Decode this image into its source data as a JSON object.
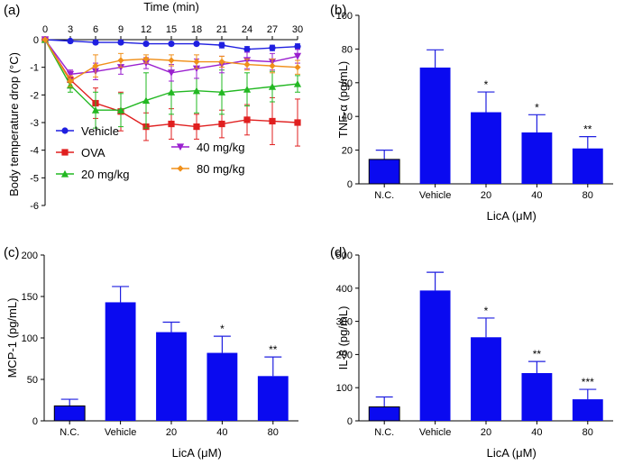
{
  "chart_data": [
    {
      "panel": "(a)",
      "type": "line",
      "xlabel": "Time (min)",
      "ylabel": "Body temperature drop (°C)",
      "x": [
        0,
        3,
        6,
        9,
        12,
        15,
        18,
        21,
        24,
        27,
        30
      ],
      "xticks": [
        "0",
        "3",
        "6",
        "9",
        "12",
        "15",
        "18",
        "21",
        "24",
        "27",
        "30"
      ],
      "xlim": [
        0,
        30
      ],
      "ylim": [
        -6,
        0
      ],
      "yticks": [
        "0",
        "-1",
        "-2",
        "-3",
        "-4",
        "-5",
        "-6"
      ],
      "series": [
        {
          "name": "Vehicle",
          "color": "#1f1fe0",
          "marker": "circle",
          "values": [
            0,
            -0.05,
            -0.1,
            -0.1,
            -0.15,
            -0.15,
            -0.15,
            -0.2,
            -0.35,
            -0.3,
            -0.25
          ],
          "errors": [
            0,
            0.05,
            0.05,
            0.05,
            0.05,
            0.05,
            0.05,
            0.1,
            0.1,
            0.1,
            0.1
          ]
        },
        {
          "name": "OVA",
          "color": "#e01f1f",
          "marker": "square",
          "values": [
            0,
            -1.45,
            -2.3,
            -2.6,
            -3.15,
            -3.05,
            -3.15,
            -3.05,
            -2.9,
            -2.95,
            -3.0
          ],
          "errors": [
            0,
            0.3,
            0.55,
            0.7,
            0.5,
            0.55,
            0.45,
            0.5,
            0.55,
            0.85,
            0.85
          ]
        },
        {
          "name": "20 mg/kg",
          "color": "#22b822",
          "marker": "triangle",
          "values": [
            0,
            -1.65,
            -2.55,
            -2.55,
            -2.2,
            -1.9,
            -1.85,
            -1.9,
            -1.8,
            -1.7,
            -1.6
          ],
          "errors": [
            0,
            0.25,
            0.65,
            0.6,
            1.0,
            0.8,
            0.8,
            0.8,
            0.6,
            0.55,
            0.3
          ]
        },
        {
          "name": "40 mg/kg",
          "color": "#9a1fcf",
          "marker": "triangle-down",
          "values": [
            0,
            -1.25,
            -1.15,
            -1.0,
            -0.85,
            -1.2,
            -1.05,
            -0.9,
            -0.75,
            -0.8,
            -0.6
          ],
          "errors": [
            0,
            0.15,
            0.3,
            0.25,
            0.2,
            0.3,
            0.35,
            0.3,
            0.3,
            0.3,
            0.25
          ]
        },
        {
          "name": "80 mg/kg",
          "color": "#f0901a",
          "marker": "diamond",
          "values": [
            0,
            -1.5,
            -0.95,
            -0.75,
            -0.7,
            -0.75,
            -0.8,
            -0.8,
            -0.9,
            -0.95,
            -1.0
          ],
          "errors": [
            0,
            0.2,
            0.4,
            0.25,
            0.15,
            0.2,
            0.25,
            0.2,
            0.2,
            0.25,
            0.25
          ]
        }
      ]
    },
    {
      "panel": "(b)",
      "type": "bar",
      "ylabel": "TNF-α (pg/mL)",
      "xlabel": "LicA (μM)",
      "categories": [
        "N.C.",
        "Vehicle",
        "20",
        "40",
        "80"
      ],
      "values": [
        14.5,
        69,
        42.5,
        30.5,
        21
      ],
      "errors": [
        5.5,
        10.5,
        12,
        10.5,
        7
      ],
      "significance": [
        "",
        "",
        "*",
        "*",
        "**"
      ],
      "ylim": [
        0,
        100
      ],
      "yticks": [
        "0",
        "20",
        "40",
        "60",
        "80",
        "100"
      ]
    },
    {
      "panel": "(c)",
      "type": "bar",
      "ylabel": "MCP-1 (pg/mL)",
      "xlabel": "LicA (μM)",
      "categories": [
        "N.C.",
        "Vehicle",
        "20",
        "40",
        "80"
      ],
      "values": [
        18,
        143,
        107,
        82,
        54
      ],
      "errors": [
        8,
        19,
        12,
        20,
        23
      ],
      "significance": [
        "",
        "",
        "",
        "*",
        "**"
      ],
      "ylim": [
        0,
        200
      ],
      "yticks": [
        "0",
        "50",
        "100",
        "150",
        "200"
      ]
    },
    {
      "panel": "(d)",
      "type": "bar",
      "ylabel": "IL-8 (pg/mL)",
      "xlabel": "LicA (μM)",
      "categories": [
        "N.C.",
        "Vehicle",
        "20",
        "40",
        "80"
      ],
      "values": [
        42,
        393,
        252,
        144,
        65
      ],
      "errors": [
        30,
        55,
        58,
        35,
        30
      ],
      "significance": [
        "",
        "",
        "*",
        "**",
        "***"
      ],
      "ylim": [
        0,
        500
      ],
      "yticks": [
        "0",
        "100",
        "200",
        "300",
        "400",
        "500"
      ]
    }
  ]
}
